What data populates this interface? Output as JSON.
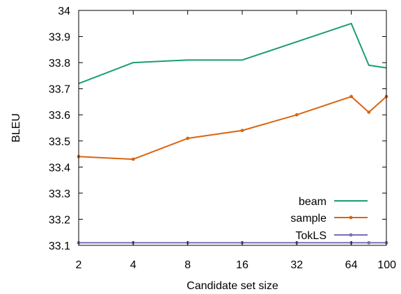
{
  "chart_data": {
    "type": "line",
    "xlabel": "Candidate set size",
    "ylabel": "BLEU",
    "x_scale": "log2",
    "xlim": [
      2,
      100
    ],
    "ylim": [
      33.1,
      34.0
    ],
    "x_ticks": [
      {
        "value": 2,
        "label": "2"
      },
      {
        "value": 4,
        "label": "4"
      },
      {
        "value": 8,
        "label": "8"
      },
      {
        "value": 16,
        "label": "16"
      },
      {
        "value": 32,
        "label": "32"
      },
      {
        "value": 64,
        "label": "64"
      },
      {
        "value": 100,
        "label": "100"
      }
    ],
    "y_ticks": [
      {
        "value": 33.1,
        "label": "33.1"
      },
      {
        "value": 33.2,
        "label": "33.2"
      },
      {
        "value": 33.3,
        "label": "33.3"
      },
      {
        "value": 33.4,
        "label": "33.4"
      },
      {
        "value": 33.5,
        "label": "33.5"
      },
      {
        "value": 33.6,
        "label": "33.6"
      },
      {
        "value": 33.7,
        "label": "33.7"
      },
      {
        "value": 33.8,
        "label": "33.8"
      },
      {
        "value": 33.9,
        "label": "33.9"
      },
      {
        "value": 34.0,
        "label": "34"
      }
    ],
    "grid": false,
    "legend_position": "bottom-right",
    "series": [
      {
        "name": "beam",
        "color": "#1a9c75",
        "markers": false,
        "x": [
          2,
          4,
          8,
          16,
          64,
          80,
          100
        ],
        "y": [
          33.72,
          33.8,
          33.81,
          33.81,
          33.95,
          33.79,
          33.78
        ]
      },
      {
        "name": "sample",
        "color": "#d9640f",
        "markers": true,
        "x": [
          2,
          4,
          8,
          16,
          32,
          64,
          80,
          100
        ],
        "y": [
          33.44,
          33.43,
          33.51,
          33.54,
          33.6,
          33.67,
          33.61,
          33.67
        ]
      },
      {
        "name": "TokLS",
        "color": "#7570b3",
        "markers": true,
        "x": [
          2,
          4,
          8,
          16,
          32,
          64,
          80,
          100
        ],
        "y": [
          33.11,
          33.11,
          33.11,
          33.11,
          33.11,
          33.11,
          33.11,
          33.11
        ]
      }
    ]
  }
}
